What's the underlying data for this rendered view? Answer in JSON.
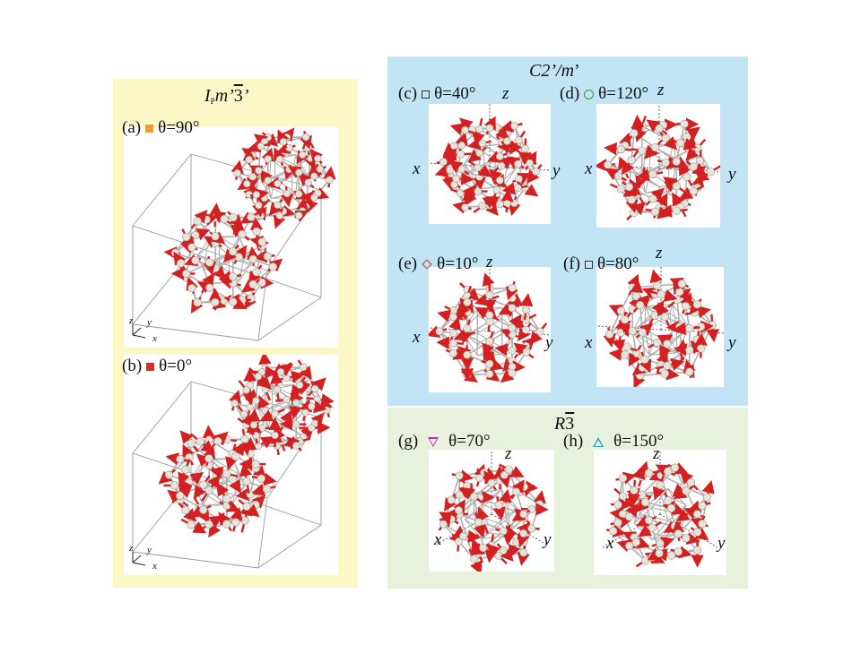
{
  "groups": {
    "left": {
      "title_main": "I",
      "title_sub": "P",
      "title_rest": "m’",
      "title_bar": "3",
      "title_end": "’"
    },
    "blue": {
      "title_main": "C2’/",
      "title_m": "m",
      "title_end": "’"
    },
    "green": {
      "title_main": "R",
      "title_bar": "3"
    }
  },
  "panels": [
    {
      "id": "a",
      "tag": "(a)",
      "marker": "filled-square",
      "marker_color": "#f39a2c",
      "theta": "θ=90°"
    },
    {
      "id": "b",
      "tag": "(b)",
      "marker": "filled-square",
      "marker_color": "#e02a20",
      "theta": "θ=0°"
    },
    {
      "id": "c",
      "tag": "(c)",
      "marker": "open-square",
      "marker_color": "#333333",
      "theta": "θ=40°"
    },
    {
      "id": "d",
      "tag": "(d)",
      "marker": "open-circle",
      "marker_color": "#2f9a3a",
      "theta": "θ=120°"
    },
    {
      "id": "e",
      "tag": "(e)",
      "marker": "open-diamond",
      "marker_color": "#c0392b",
      "theta": "θ=10°"
    },
    {
      "id": "f",
      "tag": "(f)",
      "marker": "open-square",
      "marker_color": "#333333",
      "theta": "θ=80°"
    },
    {
      "id": "g",
      "tag": "(g)",
      "marker": "open-triangle-down",
      "marker_color": "#c02ab8",
      "theta": "θ=70°"
    },
    {
      "id": "h",
      "tag": "(h)",
      "marker": "open-triangle-up",
      "marker_color": "#2a9ec0",
      "theta": "θ=150°"
    }
  ],
  "axes": {
    "x": "x",
    "y": "y",
    "z": "z"
  },
  "colors": {
    "spin": "#d42020",
    "atom": "#e8e4dc",
    "bond": "#b0b0b0",
    "cell": "#9a9a9a"
  }
}
